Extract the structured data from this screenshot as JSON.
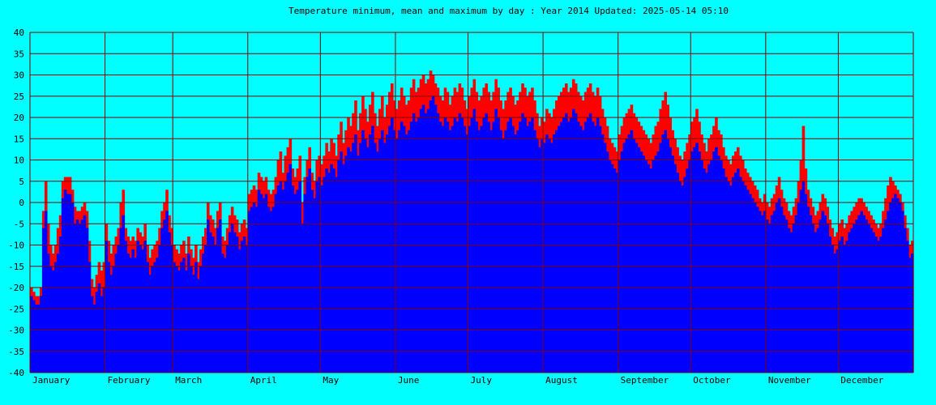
{
  "chart_data": {
    "type": "bar",
    "title": "Temperature minimum, mean and maximum by day : Year 2014",
    "updated_label": "Updated:",
    "updated": "2025-05-14 05:10",
    "xlabel": "",
    "ylabel": "",
    "ylim": [
      -40,
      40
    ],
    "ytick_step": 5,
    "grid": true,
    "year": 2014,
    "months": [
      "January",
      "February",
      "March",
      "April",
      "May",
      "June",
      "July",
      "August",
      "September",
      "October",
      "November",
      "December"
    ],
    "month_days": [
      31,
      28,
      31,
      30,
      31,
      30,
      31,
      31,
      30,
      31,
      30,
      31
    ],
    "series": [
      {
        "name": "",
        "color": "#0000ff",
        "values": [
          -22,
          -23,
          -24,
          -24,
          -22,
          -6,
          -2,
          -12,
          -15,
          -16,
          -14,
          -12,
          -8,
          1,
          3,
          2,
          2,
          0,
          -5,
          -4,
          -5,
          -4,
          -3,
          -6,
          -14,
          -22,
          -24,
          -21,
          -19,
          -22,
          -20,
          -9,
          -14,
          -17,
          -15,
          -12,
          -10,
          -6,
          -3,
          -9,
          -12,
          -13,
          -11,
          -13,
          -9,
          -10,
          -11,
          -9,
          -14,
          -17,
          -15,
          -14,
          -13,
          -10,
          -6,
          -4,
          -2,
          -7,
          -10,
          -14,
          -15,
          -16,
          -14,
          -13,
          -16,
          -12,
          -15,
          -17,
          -14,
          -18,
          -15,
          -12,
          -10,
          -4,
          -7,
          -8,
          -10,
          -6,
          -4,
          -12,
          -13,
          -10,
          -7,
          -5,
          -7,
          -8,
          -11,
          -9,
          -8,
          -10,
          -2,
          -1,
          0,
          -1,
          3,
          2,
          1,
          2,
          -1,
          -2,
          -1,
          2,
          4,
          5,
          3,
          5,
          7,
          9,
          4,
          2,
          3,
          5,
          -5,
          2,
          6,
          8,
          3,
          1,
          5,
          6,
          4,
          6,
          8,
          7,
          9,
          8,
          6,
          10,
          12,
          9,
          11,
          13,
          12,
          14,
          16,
          11,
          14,
          17,
          15,
          13,
          16,
          18,
          14,
          12,
          15,
          17,
          14,
          16,
          18,
          20,
          17,
          15,
          17,
          19,
          18,
          16,
          17,
          19,
          21,
          19,
          20,
          22,
          23,
          21,
          22,
          24,
          25,
          23,
          21,
          19,
          18,
          20,
          19,
          17,
          18,
          20,
          19,
          21,
          20,
          18,
          16,
          18,
          20,
          22,
          19,
          17,
          18,
          20,
          21,
          19,
          17,
          19,
          22,
          20,
          17,
          15,
          17,
          19,
          20,
          18,
          16,
          17,
          19,
          21,
          20,
          18,
          19,
          20,
          17,
          15,
          13,
          15,
          14,
          16,
          15,
          14,
          16,
          17,
          18,
          19,
          20,
          21,
          19,
          20,
          22,
          21,
          19,
          18,
          17,
          19,
          20,
          21,
          19,
          18,
          20,
          18,
          16,
          14,
          12,
          10,
          9,
          8,
          7,
          10,
          12,
          14,
          15,
          16,
          17,
          15,
          14,
          13,
          12,
          11,
          10,
          9,
          8,
          10,
          11,
          12,
          14,
          16,
          17,
          15,
          13,
          11,
          9,
          7,
          5,
          4,
          6,
          8,
          10,
          12,
          13,
          14,
          12,
          10,
          8,
          7,
          9,
          10,
          12,
          13,
          11,
          10,
          8,
          6,
          5,
          4,
          6,
          7,
          8,
          6,
          5,
          4,
          3,
          2,
          1,
          0,
          -1,
          -2,
          -3,
          -2,
          -4,
          -5,
          -3,
          -2,
          0,
          1,
          -1,
          -3,
          -4,
          -6,
          -7,
          -5,
          -3,
          0,
          3,
          5,
          2,
          -1,
          -3,
          -5,
          -7,
          -6,
          -4,
          -2,
          -3,
          -5,
          -8,
          -10,
          -12,
          -11,
          -9,
          -8,
          -10,
          -9,
          -7,
          -6,
          -5,
          -4,
          -3,
          -2,
          -3,
          -4,
          -5,
          -6,
          -7,
          -8,
          -9,
          -8,
          -6,
          -4,
          -2,
          0,
          1,
          2,
          1,
          0,
          -2,
          -6,
          -9,
          -13,
          -12
        ]
      },
      {
        "name": "",
        "color": "#ff0000",
        "values": [
          -20,
          -21,
          -22,
          -22,
          -20,
          -2,
          5,
          -5,
          -10,
          -12,
          -10,
          -6,
          -3,
          5,
          6,
          6,
          6,
          3,
          -1,
          -2,
          -2,
          -1,
          0,
          -2,
          -9,
          -18,
          -20,
          -17,
          -14,
          -16,
          -14,
          -5,
          -9,
          -12,
          -10,
          -8,
          -6,
          0,
          3,
          -6,
          -8,
          -9,
          -8,
          -9,
          -6,
          -7,
          -8,
          -5,
          -10,
          -13,
          -11,
          -10,
          -9,
          -6,
          -2,
          0,
          3,
          -3,
          -6,
          -10,
          -11,
          -12,
          -10,
          -9,
          -12,
          -8,
          -11,
          -13,
          -10,
          -14,
          -11,
          -8,
          -6,
          0,
          -3,
          -4,
          -6,
          -2,
          0,
          -8,
          -9,
          -6,
          -3,
          -1,
          -3,
          -4,
          -7,
          -5,
          -4,
          -6,
          2,
          3,
          4,
          3,
          7,
          6,
          5,
          6,
          3,
          2,
          3,
          6,
          10,
          12,
          7,
          11,
          13,
          15,
          8,
          6,
          8,
          11,
          0,
          6,
          10,
          13,
          7,
          5,
          10,
          11,
          9,
          11,
          14,
          12,
          15,
          14,
          11,
          16,
          19,
          14,
          17,
          20,
          18,
          21,
          24,
          17,
          21,
          25,
          22,
          19,
          23,
          26,
          21,
          18,
          22,
          25,
          20,
          23,
          26,
          28,
          24,
          22,
          24,
          27,
          25,
          23,
          24,
          27,
          29,
          26,
          27,
          29,
          30,
          28,
          29,
          31,
          30,
          28,
          27,
          25,
          24,
          27,
          26,
          23,
          25,
          27,
          26,
          28,
          27,
          24,
          22,
          25,
          27,
          29,
          26,
          24,
          25,
          27,
          28,
          26,
          24,
          26,
          29,
          27,
          24,
          22,
          24,
          26,
          27,
          25,
          23,
          24,
          26,
          28,
          27,
          25,
          26,
          27,
          24,
          21,
          18,
          20,
          19,
          22,
          21,
          20,
          22,
          24,
          25,
          26,
          27,
          28,
          26,
          27,
          29,
          28,
          26,
          25,
          24,
          26,
          27,
          28,
          26,
          25,
          27,
          25,
          22,
          20,
          18,
          15,
          14,
          13,
          12,
          16,
          18,
          20,
          21,
          22,
          23,
          21,
          20,
          19,
          18,
          17,
          16,
          15,
          14,
          16,
          18,
          19,
          22,
          24,
          26,
          23,
          20,
          17,
          15,
          13,
          11,
          10,
          12,
          14,
          16,
          19,
          20,
          22,
          19,
          16,
          14,
          12,
          15,
          16,
          18,
          20,
          17,
          16,
          13,
          11,
          10,
          9,
          11,
          12,
          13,
          11,
          10,
          8,
          7,
          6,
          5,
          4,
          3,
          1,
          0,
          2,
          0,
          -1,
          1,
          2,
          4,
          6,
          3,
          1,
          0,
          -2,
          -3,
          -1,
          1,
          5,
          10,
          18,
          8,
          3,
          1,
          -1,
          -3,
          -2,
          0,
          2,
          1,
          -1,
          -4,
          -6,
          -8,
          -7,
          -5,
          -4,
          -6,
          -5,
          -3,
          -2,
          -1,
          0,
          1,
          1,
          0,
          -1,
          -2,
          -3,
          -4,
          -5,
          -6,
          -5,
          -2,
          1,
          4,
          6,
          5,
          4,
          3,
          2,
          0,
          -3,
          -6,
          -10,
          -9
        ]
      }
    ]
  }
}
